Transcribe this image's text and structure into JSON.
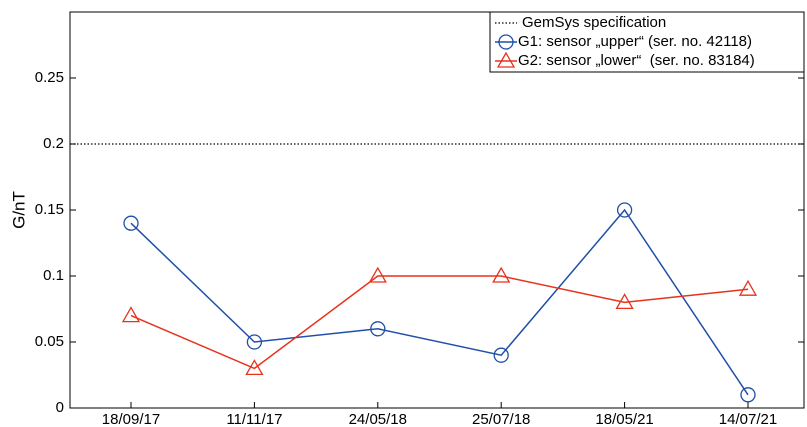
{
  "chart_data": {
    "type": "line",
    "ylabel": "G/nT",
    "categories": [
      "18/09/17",
      "11/11/17",
      "24/05/18",
      "25/07/18",
      "18/05/21",
      "14/07/21"
    ],
    "series": [
      {
        "name": "G1: sensor „upper“ (ser. no. 42118)",
        "color": "#1f4fa8",
        "marker": "circle",
        "values": [
          0.14,
          0.05,
          0.06,
          0.04,
          0.15,
          0.01
        ]
      },
      {
        "name": "G2: sensor „lower“  (ser. no. 83184)",
        "color": "#e8321e",
        "marker": "triangle",
        "values": [
          0.07,
          0.03,
          0.1,
          0.1,
          0.08,
          0.09
        ]
      }
    ],
    "reference_line": {
      "name": "GemSys specification",
      "value": 0.2,
      "color": "#000000"
    },
    "ylim": [
      0,
      0.3
    ],
    "yticks": [
      0,
      0.05,
      0.1,
      0.15,
      0.2,
      0.25
    ],
    "legend": "upper right",
    "grid": false
  }
}
